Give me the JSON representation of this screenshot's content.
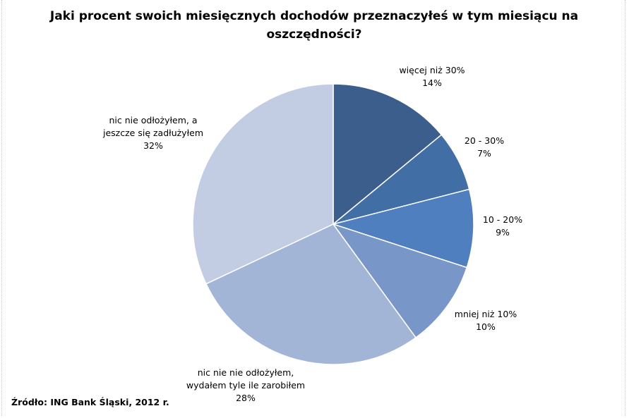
{
  "chart_data": {
    "type": "pie",
    "title": "Jaki procent swoich miesięcznych dochodów przeznaczyłeś w tym miesiącu na oszczędności?",
    "start_angle_deg": 0,
    "direction": "clockwise",
    "slices": [
      {
        "name": "więcej niż 30%",
        "label_lines": [
          "więcej niż 30%"
        ],
        "value": 14,
        "value_label": "14%",
        "color": "#3b5e8c"
      },
      {
        "name": "20 - 30%",
        "label_lines": [
          "20 - 30%"
        ],
        "value": 7,
        "value_label": "7%",
        "color": "#426ea6"
      },
      {
        "name": "10 - 20%",
        "label_lines": [
          "10 - 20%"
        ],
        "value": 9,
        "value_label": "9%",
        "color": "#4f7fbe"
      },
      {
        "name": "mniej niż 10%",
        "label_lines": [
          "mniej niż 10%"
        ],
        "value": 10,
        "value_label": "10%",
        "color": "#7896c7"
      },
      {
        "name": "nic nie nie odłożyłem, wydałem tyle ile zarobiłem",
        "label_lines": [
          "nic nie nie odłożyłem,",
          "wydałem tyle ile zarobiłem"
        ],
        "value": 28,
        "value_label": "28%",
        "color": "#a2b5d6"
      },
      {
        "name": "nic nie odłożyłem, a jeszcze się zadłużyłem",
        "label_lines": [
          "nic nie odłożyłem, a",
          "jeszcze się zadłużyłem"
        ],
        "value": 32,
        "value_label": "32%",
        "color": "#c2cde3"
      }
    ],
    "legend": "none",
    "source": "Źródło: ING Bank Śląski, 2012 r."
  }
}
